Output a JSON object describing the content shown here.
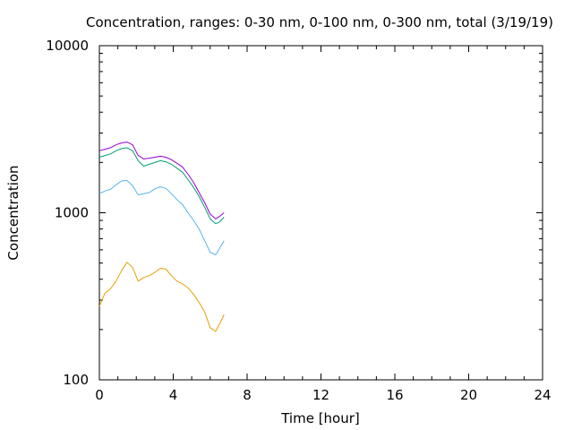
{
  "chart_data": {
    "type": "line",
    "title": "Concentration, ranges: 0-30 nm, 0-100 nm, 0-300 nm, total (3/19/19)",
    "xlabel": "Time [hour]",
    "ylabel": "Concentration",
    "xlim": [
      0,
      24
    ],
    "ylim": [
      100,
      10000
    ],
    "yscale": "log",
    "grid": false,
    "x_ticks": [
      "0",
      "4",
      "8",
      "12",
      "16",
      "20",
      "24"
    ],
    "y_ticks": [
      "100",
      "1000",
      "10000"
    ],
    "series": [
      {
        "color": "#e69f00",
        "x": [
          0,
          0.3,
          0.6,
          0.9,
          1.2,
          1.5,
          1.8,
          2.1,
          2.4,
          2.7,
          3.0,
          3.3,
          3.6,
          3.9,
          4.2,
          4.5,
          4.8,
          5.1,
          5.4,
          5.7,
          6.0,
          6.3,
          6.5,
          6.75
        ],
        "y": [
          275,
          330,
          350,
          390,
          450,
          505,
          470,
          390,
          410,
          420,
          440,
          465,
          460,
          420,
          390,
          375,
          355,
          325,
          290,
          255,
          205,
          195,
          215,
          245
        ]
      },
      {
        "color": "#56b4e9",
        "x": [
          0,
          0.3,
          0.6,
          0.9,
          1.2,
          1.5,
          1.8,
          2.1,
          2.4,
          2.7,
          3.0,
          3.3,
          3.6,
          3.9,
          4.2,
          4.5,
          4.8,
          5.1,
          5.4,
          5.7,
          6.0,
          6.3,
          6.5,
          6.75
        ],
        "y": [
          1300,
          1350,
          1380,
          1470,
          1550,
          1560,
          1450,
          1280,
          1300,
          1320,
          1390,
          1430,
          1400,
          1300,
          1200,
          1120,
          1000,
          900,
          800,
          680,
          580,
          560,
          610,
          680
        ]
      },
      {
        "color": "#009e73",
        "x": [
          0,
          0.3,
          0.6,
          0.9,
          1.2,
          1.5,
          1.8,
          2.1,
          2.4,
          2.7,
          3.0,
          3.3,
          3.6,
          3.9,
          4.2,
          4.5,
          4.8,
          5.1,
          5.4,
          5.7,
          6.0,
          6.3,
          6.5,
          6.75
        ],
        "y": [
          2150,
          2200,
          2250,
          2350,
          2420,
          2450,
          2350,
          2050,
          1900,
          1950,
          2000,
          2050,
          2020,
          1950,
          1850,
          1750,
          1580,
          1420,
          1250,
          1080,
          920,
          860,
          880,
          940
        ]
      },
      {
        "color": "#9400d3",
        "x": [
          0,
          0.3,
          0.6,
          0.9,
          1.2,
          1.5,
          1.8,
          2.1,
          2.4,
          2.7,
          3.0,
          3.3,
          3.6,
          3.9,
          4.2,
          4.5,
          4.8,
          5.1,
          5.4,
          5.7,
          6.0,
          6.3,
          6.5,
          6.75
        ],
        "y": [
          2350,
          2400,
          2450,
          2550,
          2620,
          2650,
          2550,
          2200,
          2100,
          2120,
          2150,
          2180,
          2150,
          2080,
          1980,
          1880,
          1700,
          1520,
          1320,
          1150,
          980,
          920,
          950,
          1000
        ]
      }
    ]
  }
}
